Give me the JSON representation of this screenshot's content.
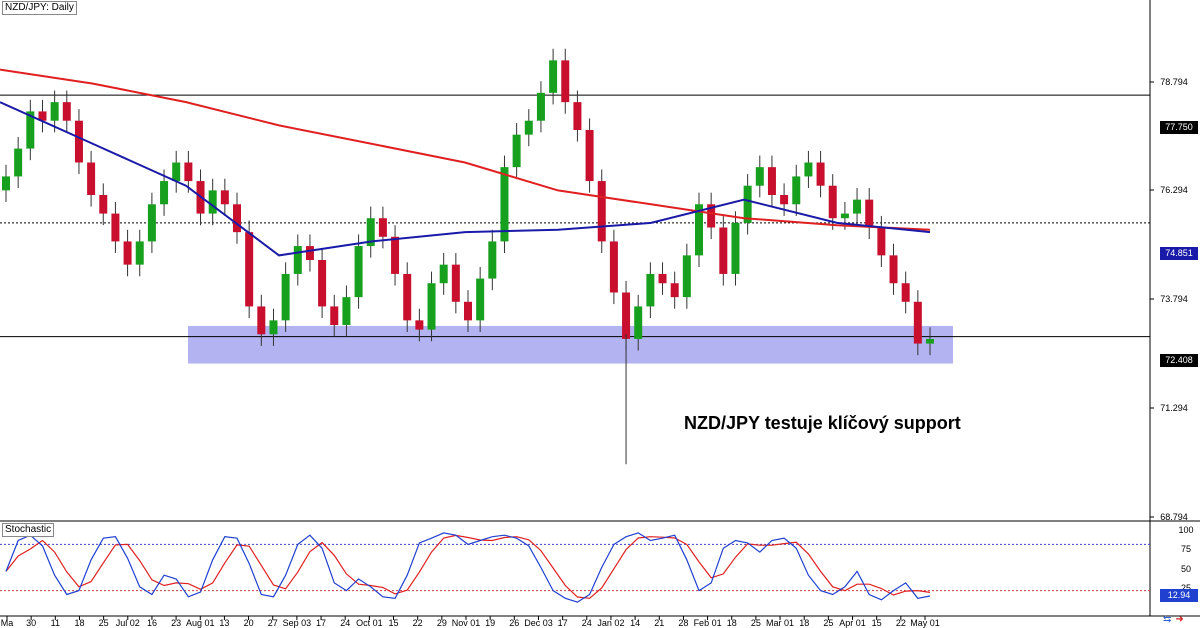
{
  "symbol_label": "NZD/JPY: Daily",
  "indicator_label": "Stochastic",
  "caption": "NZD/JPY testuje klíčový support",
  "price_tags": {
    "resistance_level": "77.750",
    "ma_level": "74.851",
    "current_price": "72.408",
    "stoch_value": "12.94"
  },
  "icons": [
    "sync-icon",
    "arrow-right-icon"
  ],
  "colors": {
    "up_candle": "#17a01e",
    "down_candle": "#c8102e",
    "ma_long": "#e02020",
    "ma_short": "#1a1aa8",
    "support_zone": "#9999ee",
    "stoch_k": "#2040d0",
    "stoch_d": "#e02020"
  },
  "chart_data": [
    {
      "type": "candlestick",
      "title": "NZD/JPY: Daily",
      "y_axis_ticks": [
        "78.794",
        "77.750",
        "76.294",
        "74.851",
        "73.794",
        "72.408",
        "71.294",
        "68.794"
      ],
      "ylim": [
        68.6,
        79.8
      ],
      "x_tick_labels": [
        "Ma",
        "30",
        "11",
        "18",
        "25",
        "Jul 02",
        "16",
        "23",
        "Aug 01",
        "13",
        "20",
        "27",
        "Sep 03",
        "17",
        "24",
        "Oct 01",
        "15",
        "22",
        "29",
        "Nov 01",
        "19",
        "26",
        "Dec 03",
        "17",
        "24",
        "Jan 02",
        "14",
        "21",
        "28",
        "Feb 01",
        "18",
        "25",
        "Mar 01",
        "18",
        "25",
        "Apr 01",
        "15",
        "22",
        "May 01"
      ],
      "horizontal_lines": [
        {
          "value": 77.75,
          "style": "solid"
        },
        {
          "value": 75.0,
          "style": "dotted"
        },
        {
          "value": 72.55,
          "style": "solid"
        }
      ],
      "support_zone": [
        71.97,
        72.78
      ],
      "close_series": [
        76.0,
        76.6,
        77.4,
        77.2,
        77.6,
        77.2,
        76.3,
        75.6,
        75.2,
        74.6,
        74.1,
        74.6,
        75.4,
        75.9,
        76.3,
        75.9,
        75.2,
        75.7,
        75.4,
        74.8,
        73.2,
        72.6,
        72.9,
        73.9,
        74.5,
        74.2,
        73.2,
        72.8,
        73.4,
        74.5,
        75.1,
        74.7,
        73.9,
        72.9,
        72.7,
        73.7,
        74.1,
        73.3,
        72.9,
        73.8,
        74.6,
        76.2,
        76.9,
        77.2,
        77.8,
        78.5,
        77.6,
        77.0,
        75.9,
        74.6,
        73.5,
        72.5,
        73.2,
        73.9,
        73.7,
        73.4,
        74.3,
        75.4,
        74.9,
        73.9,
        75.0,
        75.8,
        76.2,
        75.6,
        75.4,
        76.0,
        76.3,
        75.8,
        75.1,
        75.2,
        75.5,
        74.9,
        74.3,
        73.7,
        73.3,
        72.4,
        72.5
      ],
      "ma_long_series": [
        78.3,
        78.0,
        77.6,
        77.1,
        76.7,
        76.3,
        75.7,
        75.4,
        75.1,
        74.95,
        74.85
      ],
      "ma_short_series": [
        77.6,
        76.7,
        75.8,
        74.3,
        74.6,
        74.8,
        74.85,
        75.0,
        75.5,
        75.0,
        74.8
      ]
    },
    {
      "type": "line",
      "title": "Stochastic",
      "y_axis_ticks": [
        "100",
        "75",
        "50",
        "25",
        "12.94"
      ],
      "ylim": [
        0,
        100
      ],
      "levels": [
        80,
        20
      ],
      "series": [
        {
          "name": "",
          "values": [
            45,
            85,
            92,
            78,
            40,
            15,
            20,
            60,
            88,
            90,
            62,
            25,
            15,
            40,
            35,
            12,
            18,
            60,
            90,
            88,
            55,
            15,
            12,
            40,
            80,
            92,
            75,
            30,
            20,
            35,
            25,
            12,
            10,
            40,
            82,
            88,
            95,
            92,
            80,
            85,
            90,
            92,
            88,
            78,
            50,
            20,
            10,
            5,
            15,
            50,
            80,
            90,
            95,
            85,
            88,
            92,
            60,
            20,
            30,
            75,
            85,
            82,
            70,
            85,
            88,
            75,
            40,
            20,
            15,
            25,
            45,
            15,
            8,
            20,
            30,
            10,
            13
          ]
        }
      ]
    }
  ]
}
